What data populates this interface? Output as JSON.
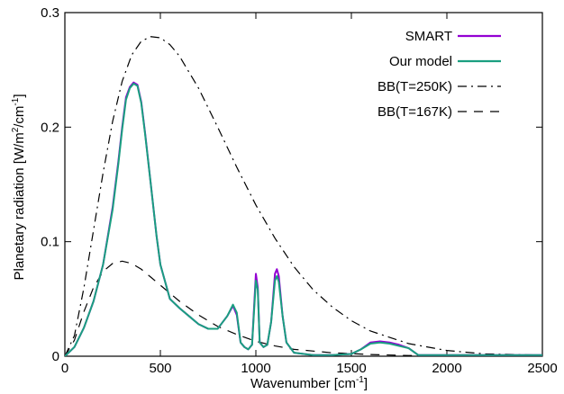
{
  "chart_data": {
    "type": "line",
    "title": "",
    "xlabel": {
      "main": "Wavenumber [cm",
      "sup": "-1",
      "end": "]"
    },
    "ylabel": {
      "part1": "Planetary radiation [W/m",
      "sup1": "2",
      "part2": "/cm",
      "sup2": "-1",
      "part3": "]"
    },
    "xlim": [
      0,
      2500
    ],
    "ylim": [
      0,
      0.3
    ],
    "xticks": [
      0,
      500,
      1000,
      1500,
      2000,
      2500
    ],
    "yticks": [
      0,
      0.1,
      0.2,
      0.3
    ],
    "xtick_labels": [
      "0",
      "500",
      "1000",
      "1500",
      "2000",
      "2500"
    ],
    "ytick_labels": [
      "0",
      "0.1",
      "0.2",
      "0.3"
    ],
    "legend_position": "top-right",
    "grid": false,
    "series": [
      {
        "name": "SMART",
        "color": "#9400d3",
        "style": "solid",
        "x": [
          0,
          50,
          100,
          150,
          200,
          250,
          280,
          300,
          320,
          340,
          360,
          380,
          400,
          420,
          450,
          480,
          500,
          550,
          600,
          650,
          700,
          750,
          800,
          850,
          880,
          900,
          920,
          940,
          960,
          980,
          1000,
          1010,
          1020,
          1040,
          1060,
          1080,
          1100,
          1110,
          1120,
          1140,
          1160,
          1200,
          1300,
          1400,
          1500,
          1550,
          1600,
          1650,
          1700,
          1750,
          1800,
          1850,
          1900,
          2000,
          2200,
          2500
        ],
        "y": [
          0,
          0.008,
          0.025,
          0.048,
          0.08,
          0.13,
          0.17,
          0.2,
          0.226,
          0.235,
          0.239,
          0.237,
          0.222,
          0.195,
          0.15,
          0.105,
          0.08,
          0.05,
          0.042,
          0.035,
          0.028,
          0.024,
          0.024,
          0.035,
          0.044,
          0.036,
          0.012,
          0.008,
          0.006,
          0.01,
          0.072,
          0.06,
          0.012,
          0.008,
          0.01,
          0.03,
          0.072,
          0.076,
          0.07,
          0.035,
          0.012,
          0.003,
          0.001,
          0.001,
          0.002,
          0.006,
          0.012,
          0.013,
          0.012,
          0.01,
          0.007,
          0.001,
          0.001,
          0.001,
          0.001,
          0.001
        ]
      },
      {
        "name": "Our model",
        "color": "#1a9f80",
        "style": "solid",
        "x": [
          0,
          50,
          100,
          150,
          200,
          250,
          280,
          300,
          320,
          340,
          360,
          380,
          400,
          420,
          450,
          480,
          500,
          550,
          600,
          650,
          700,
          750,
          800,
          850,
          880,
          900,
          920,
          940,
          960,
          980,
          1000,
          1010,
          1020,
          1040,
          1060,
          1080,
          1100,
          1110,
          1120,
          1140,
          1160,
          1200,
          1300,
          1400,
          1500,
          1550,
          1600,
          1650,
          1700,
          1750,
          1800,
          1850,
          1900,
          2000,
          2200,
          2500
        ],
        "y": [
          0,
          0.008,
          0.025,
          0.048,
          0.08,
          0.128,
          0.168,
          0.198,
          0.224,
          0.234,
          0.238,
          0.236,
          0.221,
          0.194,
          0.15,
          0.105,
          0.08,
          0.05,
          0.042,
          0.035,
          0.028,
          0.024,
          0.024,
          0.035,
          0.045,
          0.038,
          0.012,
          0.008,
          0.006,
          0.01,
          0.066,
          0.058,
          0.012,
          0.008,
          0.01,
          0.03,
          0.066,
          0.07,
          0.065,
          0.035,
          0.012,
          0.003,
          0.001,
          0.001,
          0.002,
          0.006,
          0.011,
          0.012,
          0.011,
          0.009,
          0.007,
          0.001,
          0.001,
          0.001,
          0.001,
          0.001
        ]
      },
      {
        "name": "BB(T=250K)",
        "color": "#000000",
        "style": "dashdot",
        "x": [
          0,
          50,
          100,
          150,
          200,
          250,
          300,
          350,
          400,
          450,
          500,
          550,
          600,
          700,
          800,
          900,
          1000,
          1100,
          1200,
          1300,
          1400,
          1500,
          1600,
          1800,
          2000,
          2200,
          2500
        ],
        "y": [
          0,
          0.018,
          0.06,
          0.11,
          0.16,
          0.205,
          0.24,
          0.263,
          0.275,
          0.279,
          0.278,
          0.272,
          0.262,
          0.234,
          0.2,
          0.165,
          0.132,
          0.103,
          0.078,
          0.058,
          0.043,
          0.031,
          0.022,
          0.011,
          0.005,
          0.002,
          0.001
        ]
      },
      {
        "name": "BB(T=167K)",
        "color": "#000000",
        "style": "dashed",
        "x": [
          0,
          50,
          100,
          150,
          200,
          250,
          300,
          350,
          400,
          450,
          500,
          600,
          700,
          800,
          900,
          1000,
          1100,
          1200,
          1400,
          1600,
          1800,
          2000,
          2200,
          2500
        ],
        "y": [
          0,
          0.014,
          0.039,
          0.06,
          0.074,
          0.081,
          0.083,
          0.081,
          0.076,
          0.069,
          0.062,
          0.048,
          0.036,
          0.026,
          0.019,
          0.013,
          0.009,
          0.006,
          0.003,
          0.0015,
          0.0006,
          0.0003,
          0.0001,
          0
        ]
      }
    ]
  }
}
